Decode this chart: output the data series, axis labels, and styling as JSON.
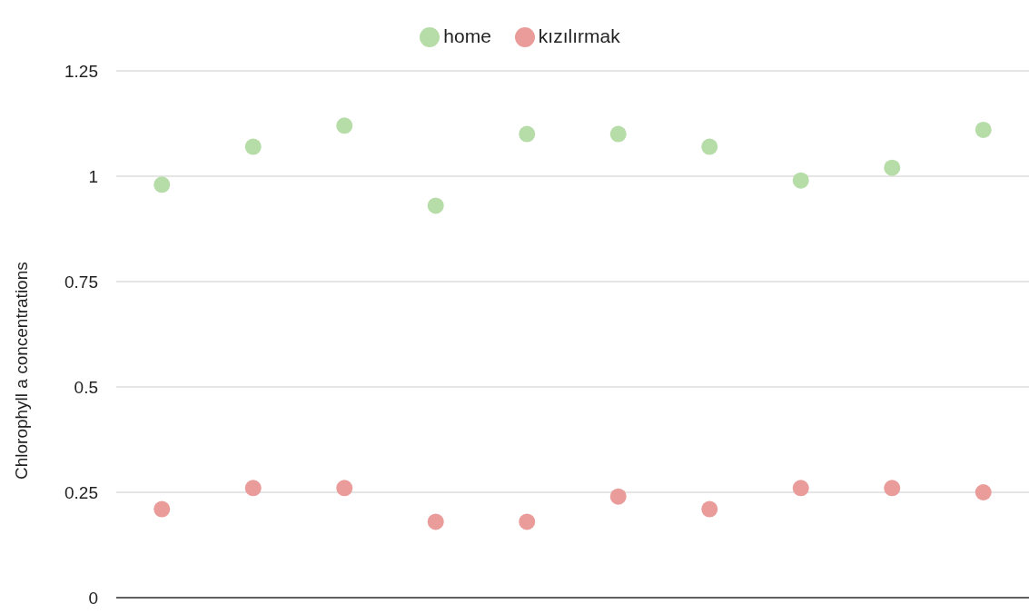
{
  "chart_data": {
    "type": "scatter",
    "ylabel": "Chlorophyll a concentrations",
    "categories": [
      null,
      null,
      null,
      null,
      null,
      null,
      null,
      null,
      null,
      null
    ],
    "series": [
      {
        "name": "home",
        "color": "#b6dca8",
        "values": [
          0.98,
          1.07,
          1.12,
          0.93,
          1.1,
          1.1,
          1.07,
          0.99,
          1.02,
          1.11
        ]
      },
      {
        "name": "kızılırmak",
        "color": "#e99c9a",
        "values": [
          0.21,
          0.26,
          0.26,
          0.18,
          0.18,
          0.24,
          0.21,
          0.26,
          0.26,
          0.25
        ]
      }
    ],
    "ylim": [
      0,
      1.25
    ],
    "yticks": [
      0,
      0.25,
      0.5,
      0.75,
      1,
      1.25
    ],
    "grid": "y",
    "legend": "top",
    "marker": "circle",
    "tick_labels": "y"
  }
}
